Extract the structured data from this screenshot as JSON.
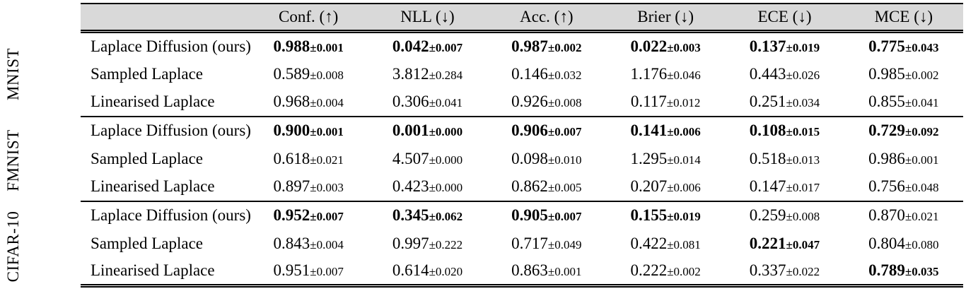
{
  "colors": {
    "header_bg": "#d9d9d9",
    "rule": "#000000",
    "text": "#000000"
  },
  "table": {
    "header": {
      "columns": [
        "Conf. (↑)",
        "NLL (↓)",
        "Acc. (↑)",
        "Brier (↓)",
        "ECE (↓)",
        "MCE (↓)"
      ]
    },
    "groups": [
      {
        "dataset": "MNIST",
        "rows": [
          {
            "method": "Laplace Diffusion (ours)",
            "cells": [
              {
                "value": "0.988",
                "error": "±0.001",
                "bold": true
              },
              {
                "value": "0.042",
                "error": "±0.007",
                "bold": true
              },
              {
                "value": "0.987",
                "error": "±0.002",
                "bold": true
              },
              {
                "value": "0.022",
                "error": "±0.003",
                "bold": true
              },
              {
                "value": "0.137",
                "error": "±0.019",
                "bold": true
              },
              {
                "value": "0.775",
                "error": "±0.043",
                "bold": true
              }
            ]
          },
          {
            "method": "Sampled Laplace",
            "cells": [
              {
                "value": "0.589",
                "error": "±0.008",
                "bold": false
              },
              {
                "value": "3.812",
                "error": "±0.284",
                "bold": false
              },
              {
                "value": "0.146",
                "error": "±0.032",
                "bold": false
              },
              {
                "value": "1.176",
                "error": "±0.046",
                "bold": false
              },
              {
                "value": "0.443",
                "error": "±0.026",
                "bold": false
              },
              {
                "value": "0.985",
                "error": "±0.002",
                "bold": false
              }
            ]
          },
          {
            "method": "Linearised Laplace",
            "cells": [
              {
                "value": "0.968",
                "error": "±0.004",
                "bold": false
              },
              {
                "value": "0.306",
                "error": "±0.041",
                "bold": false
              },
              {
                "value": "0.926",
                "error": "±0.008",
                "bold": false
              },
              {
                "value": "0.117",
                "error": "±0.012",
                "bold": false
              },
              {
                "value": "0.251",
                "error": "±0.034",
                "bold": false
              },
              {
                "value": "0.855",
                "error": "±0.041",
                "bold": false
              }
            ]
          }
        ]
      },
      {
        "dataset": "FMNIST",
        "rows": [
          {
            "method": "Laplace Diffusion (ours)",
            "cells": [
              {
                "value": "0.900",
                "error": "±0.001",
                "bold": true
              },
              {
                "value": "0.001",
                "error": "±0.000",
                "bold": true
              },
              {
                "value": "0.906",
                "error": "±0.007",
                "bold": true
              },
              {
                "value": "0.141",
                "error": "±0.006",
                "bold": true
              },
              {
                "value": "0.108",
                "error": "±0.015",
                "bold": true
              },
              {
                "value": "0.729",
                "error": "±0.092",
                "bold": true
              }
            ]
          },
          {
            "method": "Sampled Laplace",
            "cells": [
              {
                "value": "0.618",
                "error": "±0.021",
                "bold": false
              },
              {
                "value": "4.507",
                "error": "±0.000",
                "bold": false
              },
              {
                "value": "0.098",
                "error": "±0.010",
                "bold": false
              },
              {
                "value": "1.295",
                "error": "±0.014",
                "bold": false
              },
              {
                "value": "0.518",
                "error": "±0.013",
                "bold": false
              },
              {
                "value": "0.986",
                "error": "±0.001",
                "bold": false
              }
            ]
          },
          {
            "method": "Linearised Laplace",
            "cells": [
              {
                "value": "0.897",
                "error": "±0.003",
                "bold": false
              },
              {
                "value": "0.423",
                "error": "±0.000",
                "bold": false
              },
              {
                "value": "0.862",
                "error": "±0.005",
                "bold": false
              },
              {
                "value": "0.207",
                "error": "±0.006",
                "bold": false
              },
              {
                "value": "0.147",
                "error": "±0.017",
                "bold": false
              },
              {
                "value": "0.756",
                "error": "±0.048",
                "bold": false
              }
            ]
          }
        ]
      },
      {
        "dataset": "CIFAR-10",
        "rows": [
          {
            "method": "Laplace Diffusion (ours)",
            "cells": [
              {
                "value": "0.952",
                "error": "±0.007",
                "bold": true
              },
              {
                "value": "0.345",
                "error": "±0.062",
                "bold": true
              },
              {
                "value": "0.905",
                "error": "±0.007",
                "bold": true
              },
              {
                "value": "0.155",
                "error": "±0.019",
                "bold": true
              },
              {
                "value": "0.259",
                "error": "±0.008",
                "bold": false
              },
              {
                "value": "0.870",
                "error": "±0.021",
                "bold": false
              }
            ]
          },
          {
            "method": "Sampled Laplace",
            "cells": [
              {
                "value": "0.843",
                "error": "±0.004",
                "bold": false
              },
              {
                "value": "0.997",
                "error": "±0.222",
                "bold": false
              },
              {
                "value": "0.717",
                "error": "±0.049",
                "bold": false
              },
              {
                "value": "0.422",
                "error": "±0.081",
                "bold": false
              },
              {
                "value": "0.221",
                "error": "±0.047",
                "bold": true
              },
              {
                "value": "0.804",
                "error": "±0.080",
                "bold": false
              }
            ]
          },
          {
            "method": "Linearised Laplace",
            "cells": [
              {
                "value": "0.951",
                "error": "±0.007",
                "bold": false
              },
              {
                "value": "0.614",
                "error": "±0.020",
                "bold": false
              },
              {
                "value": "0.863",
                "error": "±0.001",
                "bold": false
              },
              {
                "value": "0.222",
                "error": "±0.002",
                "bold": false
              },
              {
                "value": "0.337",
                "error": "±0.022",
                "bold": false
              },
              {
                "value": "0.789",
                "error": "±0.035",
                "bold": true
              }
            ]
          }
        ]
      }
    ]
  }
}
